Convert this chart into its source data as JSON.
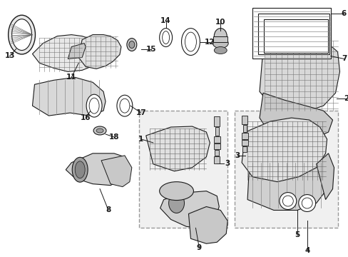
{
  "bg_color": "#ffffff",
  "fig_width": 4.89,
  "fig_height": 3.6,
  "dpi": 100,
  "line_color": "#1a1a1a",
  "text_color": "#1a1a1a",
  "font_size": 7.0,
  "leader_color": "#1a1a1a",
  "parts_gray": "#c8c8c8",
  "parts_light": "#e8e8e8",
  "parts_dark": "#a0a0a0",
  "box_fill": "#f0f0f0",
  "box_edge": "#888888"
}
